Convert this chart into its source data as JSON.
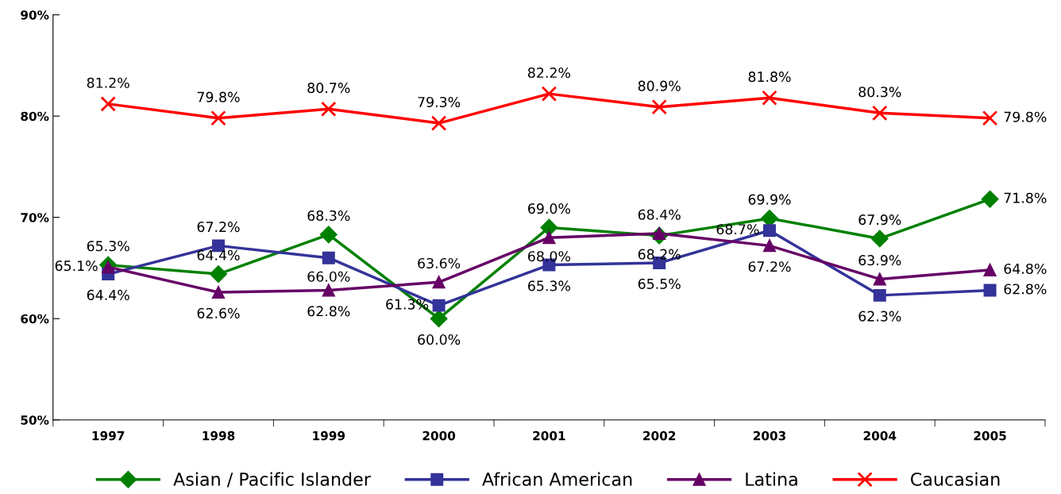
{
  "chart_data": {
    "type": "line",
    "categories": [
      "1997",
      "1998",
      "1999",
      "2000",
      "2001",
      "2002",
      "2003",
      "2004",
      "2005"
    ],
    "series": [
      {
        "name": "Asian / Pacific Islander",
        "color": "#008000",
        "marker": "diamond",
        "values": [
          65.3,
          64.4,
          68.3,
          60.0,
          69.0,
          68.2,
          69.9,
          67.9,
          71.8
        ],
        "value_labels": [
          "65.3%",
          "64.4%",
          "68.3%",
          "60.0%",
          "69.0%",
          "68.2%",
          "69.9%",
          "67.9%",
          "71.8%"
        ]
      },
      {
        "name": "African American",
        "color": "#333399",
        "marker": "square",
        "values": [
          64.4,
          67.2,
          66.0,
          61.3,
          65.3,
          65.5,
          68.7,
          62.3,
          62.8
        ],
        "value_labels": [
          "64.4%",
          "67.2%",
          "66.0%",
          "61.3%",
          "65.3%",
          "65.5%",
          "68.7%",
          "62.3%",
          "62.8%"
        ]
      },
      {
        "name": "Latina",
        "color": "#660066",
        "marker": "triangle",
        "values": [
          65.1,
          62.6,
          62.8,
          63.6,
          68.0,
          68.4,
          67.2,
          63.9,
          64.8
        ],
        "value_labels": [
          "65.1%",
          "62.6%",
          "62.8%",
          "63.6%",
          "68.0%",
          "68.4%",
          "67.2%",
          "63.9%",
          "64.8%"
        ]
      },
      {
        "name": "Caucasian",
        "color": "#ff0000",
        "marker": "cross",
        "values": [
          81.2,
          79.8,
          80.7,
          79.3,
          82.2,
          80.9,
          81.8,
          80.3,
          79.8
        ],
        "value_labels": [
          "81.2%",
          "79.8%",
          "80.7%",
          "79.3%",
          "82.2%",
          "80.9%",
          "81.8%",
          "80.3%",
          "79.8%"
        ]
      }
    ],
    "ylim": [
      50,
      90
    ],
    "yticks": [
      {
        "value": 50,
        "label": "50%"
      },
      {
        "value": 60,
        "label": "60%"
      },
      {
        "value": 70,
        "label": "70%"
      },
      {
        "value": 80,
        "label": "80%"
      },
      {
        "value": 90,
        "label": "90%"
      }
    ],
    "grid": false,
    "legend": "bottom"
  }
}
